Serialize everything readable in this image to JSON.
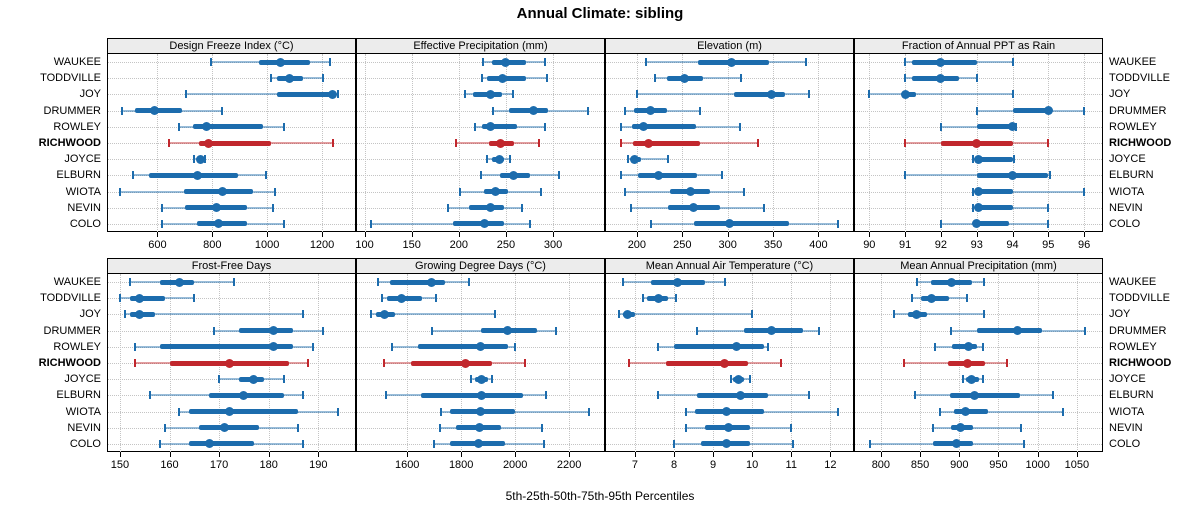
{
  "title": "Annual Climate: sibling",
  "caption": "5th-25th-50th-75th-95th Percentiles",
  "colors": {
    "series": "#1c6cad",
    "highlight": "#c1272d"
  },
  "chart_data": {
    "type": "dotplot-percentiles",
    "title": "Annual Climate: sibling",
    "caption": "5th-25th-50th-75th-95th Percentiles",
    "percentiles": [
      5,
      25,
      50,
      75,
      95
    ],
    "legend_position": "none",
    "grid": "dotted",
    "locations": [
      "WAUKEE",
      "TODDVILLE",
      "JOY",
      "DRUMMER",
      "ROWLEY",
      "RICHWOOD",
      "JOYCE",
      "ELBURN",
      "WIOTA",
      "NEVIN",
      "COLO"
    ],
    "highlight_location": "RICHWOOD",
    "panels": [
      {
        "title": "Design Freeze Index (°C)",
        "grid_row": 0,
        "grid_col": 0,
        "axis": {
          "min": 420,
          "max": 1320,
          "ticks": [
            600,
            800,
            1000,
            1200
          ]
        },
        "values": [
          [
            795,
            970,
            1050,
            1155,
            1230
          ],
          [
            1013,
            1035,
            1080,
            1130,
            1205
          ],
          [
            705,
            1035,
            1238,
            1250,
            1258
          ],
          [
            470,
            520,
            590,
            690,
            835
          ],
          [
            680,
            730,
            780,
            985,
            1063
          ],
          [
            641,
            750,
            787,
            1013,
            1241
          ],
          [
            735,
            748,
            758,
            766,
            772
          ],
          [
            510,
            570,
            745,
            895,
            995
          ],
          [
            462,
            696,
            839,
            950,
            1029
          ],
          [
            617,
            702,
            817,
            926,
            1021
          ],
          [
            617,
            744,
            823,
            926,
            1063
          ]
        ]
      },
      {
        "title": "Effective Precipitation (mm)",
        "grid_row": 0,
        "grid_col": 1,
        "axis": {
          "min": 92,
          "max": 354,
          "ticks": [
            100,
            150,
            200,
            250,
            300
          ]
        },
        "values": [
          [
            226,
            235,
            249,
            271,
            291
          ],
          [
            225,
            230,
            246,
            271,
            294
          ],
          [
            207,
            215,
            234,
            246,
            258
          ],
          [
            236,
            253,
            279,
            295,
            337
          ],
          [
            217,
            225,
            234,
            262,
            291
          ],
          [
            197,
            232,
            244,
            259,
            285
          ],
          [
            230,
            235,
            243,
            248,
            254
          ],
          [
            223,
            244,
            258,
            276,
            306
          ],
          [
            201,
            227,
            239,
            252,
            287
          ],
          [
            189,
            211,
            234,
            248,
            267
          ],
          [
            107,
            194,
            227,
            248,
            276
          ]
        ]
      },
      {
        "title": "Elevation (m)",
        "grid_row": 0,
        "grid_col": 2,
        "axis": {
          "min": 166,
          "max": 438,
          "ticks": [
            200,
            250,
            300,
            350,
            400
          ]
        },
        "values": [
          [
            210,
            267,
            304,
            345,
            386
          ],
          [
            220,
            233,
            252,
            273,
            315
          ],
          [
            200,
            307,
            348,
            363,
            389
          ],
          [
            187,
            197,
            215,
            233,
            270
          ],
          [
            182,
            195,
            207,
            265,
            314
          ],
          [
            183,
            196,
            213,
            269,
            333
          ],
          [
            190,
            193,
            197,
            204,
            234
          ],
          [
            183,
            201,
            224,
            266,
            294
          ],
          [
            187,
            237,
            259,
            280,
            318
          ],
          [
            193,
            234,
            262,
            291,
            340
          ],
          [
            216,
            263,
            302,
            367,
            421
          ]
        ]
      },
      {
        "title": "Fraction of Annual PPT as Rain",
        "grid_row": 0,
        "grid_col": 3,
        "axis": {
          "min": 89.6,
          "max": 96.5,
          "ticks": [
            90,
            91,
            92,
            93,
            94,
            95,
            96
          ]
        },
        "values": [
          [
            91.0,
            91.2,
            92.0,
            93.0,
            94.0
          ],
          [
            91.0,
            91.2,
            92.0,
            92.5,
            93.0
          ],
          [
            90.0,
            90.9,
            91.0,
            91.3,
            94.0
          ],
          [
            93.0,
            94.0,
            95.0,
            95.1,
            96.0
          ],
          [
            92.0,
            93.0,
            94.0,
            94.05,
            94.1
          ],
          [
            91.0,
            92.0,
            93.0,
            94.0,
            95.0
          ],
          [
            92.9,
            93.0,
            93.05,
            94.0,
            94.05
          ],
          [
            91.0,
            93.0,
            94.0,
            95.0,
            95.05
          ],
          [
            92.9,
            93.0,
            93.05,
            94.0,
            96.0
          ],
          [
            92.9,
            93.0,
            93.05,
            94.0,
            95.0
          ],
          [
            92.0,
            92.9,
            93.0,
            93.9,
            95.0
          ]
        ]
      },
      {
        "title": "Frost-Free Days",
        "grid_row": 1,
        "grid_col": 0,
        "axis": {
          "min": 147.6,
          "max": 197.4,
          "ticks": [
            150,
            160,
            170,
            180,
            190
          ]
        },
        "values": [
          [
            152,
            158,
            162,
            165,
            173
          ],
          [
            150,
            152,
            154,
            159,
            165
          ],
          [
            151,
            152,
            154,
            157,
            187
          ],
          [
            169,
            174,
            181,
            185,
            191
          ],
          [
            153,
            158,
            181,
            185,
            189
          ],
          [
            153,
            160,
            172,
            184,
            188
          ],
          [
            170,
            174,
            177,
            179,
            183
          ],
          [
            156,
            168,
            175,
            183,
            187
          ],
          [
            162,
            164,
            172,
            186,
            194
          ],
          [
            159,
            166,
            171,
            178,
            186
          ],
          [
            158,
            164,
            168,
            177,
            187
          ]
        ]
      },
      {
        "title": "Growing Degree Days (°C)",
        "grid_row": 1,
        "grid_col": 1,
        "axis": {
          "min": 1414,
          "max": 2329,
          "ticks": [
            1600,
            1800,
            2000,
            2200
          ]
        },
        "values": [
          [
            1490,
            1535,
            1690,
            1740,
            1830
          ],
          [
            1505,
            1525,
            1580,
            1655,
            1705
          ],
          [
            1465,
            1485,
            1515,
            1555,
            1925
          ],
          [
            1690,
            1875,
            1970,
            2080,
            2150
          ],
          [
            1545,
            1640,
            1870,
            1975,
            2000
          ],
          [
            1515,
            1615,
            1815,
            1915,
            2035
          ],
          [
            1835,
            1850,
            1875,
            1900,
            1915
          ],
          [
            1520,
            1650,
            1875,
            2030,
            2115
          ],
          [
            1725,
            1760,
            1870,
            2000,
            2275
          ],
          [
            1723,
            1780,
            1866,
            1946,
            2100
          ],
          [
            1700,
            1760,
            1863,
            1964,
            2108
          ]
        ]
      },
      {
        "title": "Mean Annual Air Temperature (°C)",
        "grid_row": 1,
        "grid_col": 2,
        "axis": {
          "min": 6.26,
          "max": 12.58,
          "ticks": [
            7,
            8,
            9,
            10,
            11,
            12
          ]
        },
        "values": [
          [
            6.7,
            7.4,
            8.1,
            8.8,
            9.3
          ],
          [
            7.2,
            7.3,
            7.6,
            7.85,
            8.05
          ],
          [
            6.6,
            6.7,
            6.8,
            7.0,
            10.0
          ],
          [
            8.6,
            9.8,
            10.5,
            11.3,
            11.7
          ],
          [
            7.6,
            8.0,
            9.6,
            10.3,
            10.4
          ],
          [
            6.85,
            7.8,
            9.3,
            9.9,
            10.75
          ],
          [
            9.45,
            9.5,
            9.65,
            9.8,
            9.95
          ],
          [
            7.6,
            8.6,
            9.7,
            10.4,
            11.45
          ],
          [
            8.3,
            8.55,
            9.35,
            10.3,
            12.2
          ],
          [
            8.3,
            8.8,
            9.4,
            9.95,
            11.0
          ],
          [
            8.0,
            8.7,
            9.35,
            9.95,
            11.05
          ]
        ]
      },
      {
        "title": "Mean Annual Precipitation (mm)",
        "grid_row": 1,
        "grid_col": 3,
        "axis": {
          "min": 767,
          "max": 1082,
          "ticks": [
            800,
            850,
            900,
            950,
            1000,
            1050
          ]
        },
        "values": [
          [
            846,
            864,
            890,
            916,
            932
          ],
          [
            840,
            851,
            865,
            887,
            910
          ],
          [
            817,
            834,
            846,
            859,
            931
          ],
          [
            890,
            922,
            974,
            1005,
            1060
          ],
          [
            869,
            891,
            912,
            922,
            930
          ],
          [
            830,
            886,
            911,
            933,
            961
          ],
          [
            905,
            909,
            916,
            925,
            930
          ],
          [
            843,
            888,
            920,
            978,
            1020
          ],
          [
            875,
            893,
            908,
            937,
            1032
          ],
          [
            867,
            890,
            901,
            918,
            979
          ],
          [
            786,
            867,
            896,
            918,
            983
          ]
        ]
      }
    ]
  }
}
